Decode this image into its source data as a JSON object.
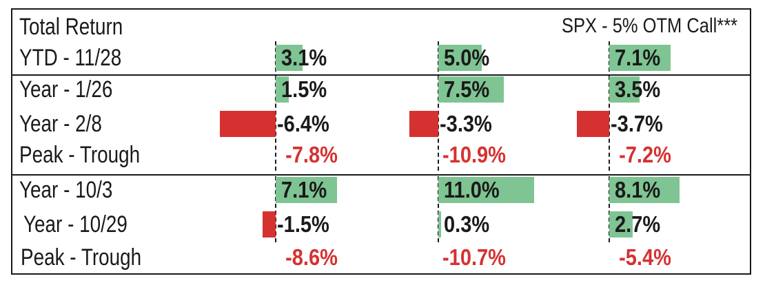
{
  "chart_data": {
    "type": "table",
    "title": "Total Return",
    "column_header": "SPX - 5% OTM Call***",
    "colors": {
      "positive_bar": "#7fc493",
      "negative_bar": "#d63131",
      "positive_text": "#1a1a1a",
      "negative_highlight": "#d63131"
    },
    "rows": [
      {
        "label": "YTD - 11/28",
        "kind": "bar",
        "values": [
          3.1,
          5.0,
          7.1
        ],
        "texts": [
          "3.1%",
          "5.0%",
          "7.1%"
        ]
      },
      {
        "label": "Year - 1/26",
        "kind": "bar",
        "values": [
          1.5,
          7.5,
          3.5
        ],
        "texts": [
          "1.5%",
          "7.5%",
          "3.5%"
        ]
      },
      {
        "label": "Year - 2/8",
        "kind": "bar",
        "values": [
          -6.4,
          -3.3,
          -3.7
        ],
        "texts": [
          "-6.4%",
          "-3.3%",
          "-3.7%"
        ]
      },
      {
        "label": "Peak - Trough",
        "kind": "text",
        "values": [
          -7.8,
          -10.9,
          -7.2
        ],
        "texts": [
          "-7.8%",
          "-10.9%",
          "-7.2%"
        ]
      },
      {
        "label": "Year - 10/3",
        "kind": "bar",
        "values": [
          7.1,
          11.0,
          8.1
        ],
        "texts": [
          "7.1%",
          "11.0%",
          "8.1%"
        ]
      },
      {
        "label": "Year - 10/29",
        "kind": "bar",
        "values": [
          -1.5,
          0.3,
          2.7
        ],
        "texts": [
          "-1.5%",
          "0.3%",
          "2.7%"
        ]
      },
      {
        "label": "Peak - Trough",
        "kind": "text",
        "values": [
          -8.6,
          -10.7,
          -5.4
        ],
        "texts": [
          "-8.6%",
          "-10.7%",
          "-5.4%"
        ]
      }
    ]
  }
}
